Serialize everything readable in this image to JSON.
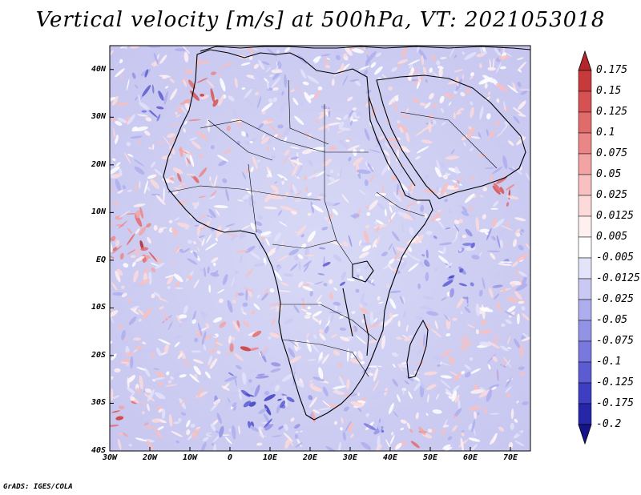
{
  "title": "Vertical velocity [m/s] at 500hPa, VT: 2021053018",
  "credit": "GrADS: IGES/COLA",
  "chart_data": {
    "type": "heatmap",
    "variable": "Vertical velocity",
    "units": "m/s",
    "level": "500hPa",
    "valid_time": "2021053018",
    "lon_range": [
      -30,
      75
    ],
    "lat_range": [
      -40,
      45
    ],
    "x_ticks": [
      "30W",
      "20W",
      "10W",
      "0",
      "10E",
      "20E",
      "30E",
      "40E",
      "50E",
      "60E",
      "70E"
    ],
    "x_tick_values": [
      -30,
      -20,
      -10,
      0,
      10,
      20,
      30,
      40,
      50,
      60,
      70
    ],
    "y_ticks": [
      "40N",
      "30N",
      "20N",
      "10N",
      "EQ",
      "10S",
      "20S",
      "30S",
      "40S"
    ],
    "y_tick_values": [
      40,
      30,
      20,
      10,
      0,
      -10,
      -20,
      -30,
      -40
    ],
    "colorbar": {
      "levels": [
        "0.175",
        "0.15",
        "0.125",
        "0.1",
        "0.075",
        "0.05",
        "0.025",
        "0.0125",
        "0.005",
        "-0.005",
        "-0.0125",
        "-0.025",
        "-0.05",
        "-0.075",
        "-0.1",
        "-0.125",
        "-0.175",
        "-0.2"
      ],
      "colors": [
        "#b5262b",
        "#c73a3c",
        "#d65252",
        "#e06b6b",
        "#ea8686",
        "#f2a3a3",
        "#f8c0c0",
        "#fcdada",
        "#fff0f0",
        "#ffffff",
        "#e3e3fa",
        "#c9c9f4",
        "#aeaeee",
        "#9393e6",
        "#7878de",
        "#5c5cd2",
        "#3e3ec2",
        "#2626a8",
        "#14148a"
      ]
    }
  }
}
